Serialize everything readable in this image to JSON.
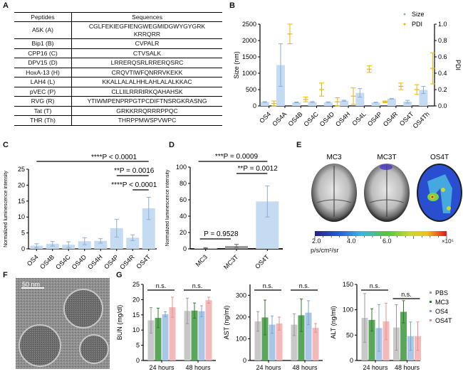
{
  "panels": {
    "A": {
      "letter": "A",
      "table": {
        "headers": [
          "Peptides",
          "Sequences"
        ],
        "rows": [
          [
            "A5K (A)",
            "CGLFEKIEGFIENGWEGMIDGWYGYGRK",
            "KRRQRR"
          ],
          [
            "Bip1 (B)",
            "CVPALR"
          ],
          [
            "CPP16 (C)",
            "CTVSALK"
          ],
          [
            "DPV15 (D)",
            "LRRERQSRLRRERQSRC"
          ],
          [
            "HoxA-13 (H)",
            "CRQVTIWFQNRRVKEKK"
          ],
          [
            "LAH4 (L)",
            "KKALLALALHHLAHLALALKKAC"
          ],
          [
            "pVEC (P)",
            "CLLIILRRRIRKQAHAHSK"
          ],
          [
            "RVG (R)",
            "YTIWMPENPRPGTPCDIFTNSRGKRASNG"
          ],
          [
            "Tat (T)",
            "GRKKRRQRRRPPQC"
          ],
          [
            "THR (Th)",
            "THRPPMWSPVWPC"
          ]
        ]
      }
    },
    "B": {
      "letter": "B"
    },
    "C": {
      "letter": "C"
    },
    "D": {
      "letter": "D"
    },
    "E": {
      "letter": "E",
      "labels": [
        "MC3",
        "MC3T",
        "OS4T"
      ],
      "colorbar": {
        "ticks": [
          "2.0",
          "4.0",
          "6.0"
        ],
        "multiplier": "×10⁵",
        "unit": "p/s/cm²/sr"
      }
    },
    "F": {
      "letter": "F",
      "scalebar": "50 nm"
    },
    "G": {
      "letter": "G"
    }
  },
  "colors": {
    "size": "#a9c6e8",
    "pdi": "#f0b400",
    "pbs": "#c8c8c8",
    "mc3": "#5aa65a",
    "os4": "#a9c6e8",
    "os4t": "#f5b8b8",
    "bar": "#c5dbf2"
  },
  "chart_data": [
    {
      "id": "B",
      "type": "bar",
      "categories": [
        "OS4",
        "OS4A",
        "OS4B",
        "OS4C",
        "OS4D",
        "OS4H",
        "OS4L",
        "OS4P",
        "OS4R",
        "OS4T",
        "OS4Th"
      ],
      "ylabel": "Size (nm)",
      "ylim": [
        0,
        2500
      ],
      "yticks": [
        0,
        500,
        1000,
        1500,
        2000,
        2500
      ],
      "y2label": "PDI",
      "y2lim": [
        0,
        1.0
      ],
      "y2ticks": [
        "0.0",
        "0.2",
        "0.4",
        "0.6",
        "0.8",
        "1.0"
      ],
      "legend": [
        "Size",
        "PDI"
      ],
      "legend_position": "top-right",
      "series": [
        {
          "name": "Size",
          "values": [
            120,
            1250,
            110,
            120,
            115,
            160,
            400,
            105,
            220,
            130,
            490
          ],
          "err": [
            10,
            650,
            10,
            12,
            10,
            15,
            130,
            8,
            10,
            40,
            110
          ]
        },
        {
          "name": "PDI",
          "values": [
            0.03,
            0.88,
            0.08,
            0.2,
            0.05,
            0.12,
            0.45,
            0.05,
            0.24,
            0.2,
            0.46
          ],
          "err": [
            0.03,
            0.12,
            0.03,
            0.08,
            0.05,
            0.1,
            0.04,
            0.01,
            0.04,
            0.06,
            0.19
          ]
        }
      ]
    },
    {
      "id": "C",
      "type": "bar",
      "categories": [
        "OS4",
        "OS4B",
        "OS4C",
        "OS4D",
        "OS4H",
        "OS4P",
        "OS4R",
        "OS4T"
      ],
      "ylabel": "Normalized luminescence intensity",
      "ylim": [
        0,
        25
      ],
      "yticks": [
        0,
        5,
        10,
        15,
        20,
        25
      ],
      "values": [
        1.0,
        1.6,
        1.3,
        2.4,
        2.5,
        6.5,
        3.5,
        12.7
      ],
      "err": [
        0.6,
        0.7,
        0.9,
        1.1,
        0.7,
        2.8,
        0.9,
        3.5
      ],
      "annotations": [
        "****P < 0.0001",
        "**P = 0.0016",
        "****P < 0.0001"
      ]
    },
    {
      "id": "D",
      "type": "bar",
      "categories": [
        "MC3",
        "MC3T",
        "OS4T"
      ],
      "ylabel": "Normalized luminescence intensity",
      "ylim": [
        0,
        100
      ],
      "yticks": [
        0,
        20,
        40,
        60,
        80,
        100
      ],
      "values": [
        1.0,
        3.5,
        58
      ],
      "err": [
        0.5,
        2.0,
        19
      ],
      "annotations": [
        "***P = 0.0009",
        "**P = 0.0012",
        "P = 0.9528"
      ]
    },
    {
      "id": "G1",
      "type": "bar",
      "groups": [
        "24 hours",
        "48 hours"
      ],
      "legend": [
        "PBS",
        "MC3",
        "OS4",
        "OS4T"
      ],
      "ylabel": "BUN (mg/dl)",
      "ylim": [
        0,
        25
      ],
      "yticks": [
        0,
        5,
        10,
        15,
        20,
        25
      ],
      "series": [
        {
          "name": "PBS",
          "values": [
            13.2,
            16.3
          ],
          "err": [
            4.2,
            4.2
          ]
        },
        {
          "name": "MC3",
          "values": [
            14.0,
            16.4
          ],
          "err": [
            3.2,
            2.5
          ]
        },
        {
          "name": "OS4",
          "values": [
            15.2,
            16.2
          ],
          "err": [
            0.8,
            1.8
          ]
        },
        {
          "name": "OS4T",
          "values": [
            17.5,
            19.8
          ],
          "err": [
            3.3,
            1.0
          ]
        }
      ],
      "annotations": [
        "n.s.",
        "n.s."
      ]
    },
    {
      "id": "G2",
      "type": "bar",
      "groups": [
        "24 hours",
        "48 hours"
      ],
      "ylabel": "AST (ng/ml)",
      "ylim": [
        0,
        350
      ],
      "yticks": [
        0,
        100,
        200,
        300
      ],
      "series": [
        {
          "name": "PBS",
          "values": [
            180,
            165
          ],
          "err": [
            45,
            50
          ]
        },
        {
          "name": "MC3",
          "values": [
            198,
            208
          ],
          "err": [
            80,
            75
          ]
        },
        {
          "name": "OS4",
          "values": [
            165,
            220
          ],
          "err": [
            40,
            55
          ]
        },
        {
          "name": "OS4T",
          "values": [
            170,
            150
          ],
          "err": [
            30,
            20
          ]
        }
      ],
      "annotations": [
        "n.s.",
        "n.s."
      ]
    },
    {
      "id": "G3",
      "type": "bar",
      "groups": [
        "24 hours",
        "48 hours"
      ],
      "ylabel": "ALT (ng/ml)",
      "ylim": [
        0,
        150
      ],
      "yticks": [
        0,
        50,
        100,
        150
      ],
      "series": [
        {
          "name": "PBS",
          "values": [
            84,
            65
          ],
          "err": [
            48,
            45
          ]
        },
        {
          "name": "MC3",
          "values": [
            80,
            96
          ],
          "err": [
            22,
            22
          ]
        },
        {
          "name": "OS4",
          "values": [
            64,
            48
          ],
          "err": [
            46,
            28
          ]
        },
        {
          "name": "OS4T",
          "values": [
            77,
            48
          ],
          "err": [
            36,
            28
          ]
        }
      ],
      "annotations": [
        "n.s.",
        "n.s."
      ]
    }
  ]
}
